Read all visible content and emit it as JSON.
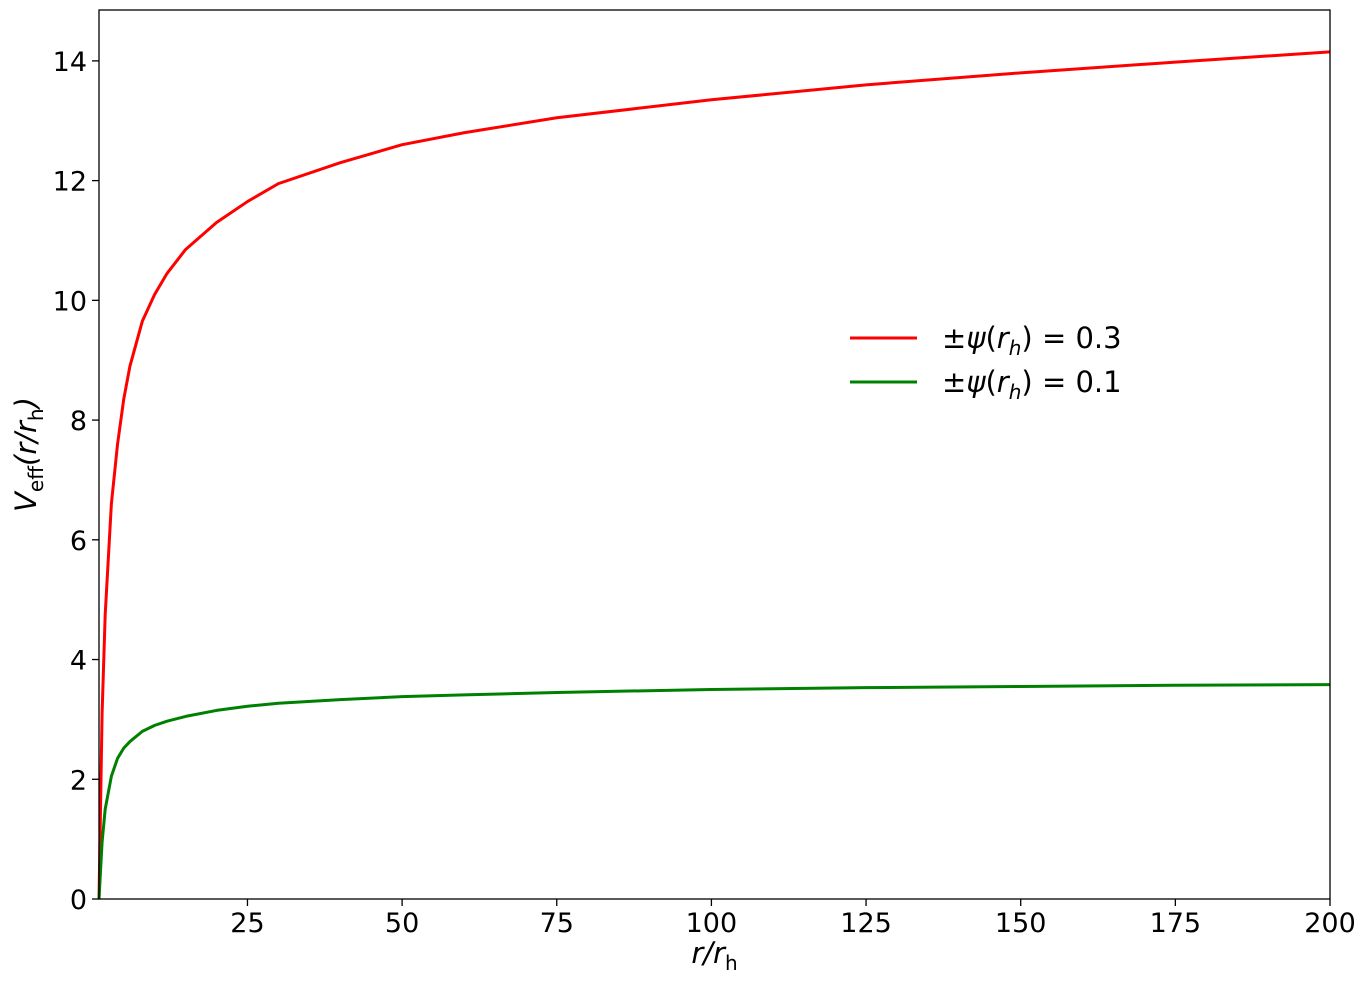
{
  "chart_data": {
    "type": "line",
    "xlabel": {
      "main": "r/r",
      "sub": "h"
    },
    "ylabel": {
      "main": "V",
      "sub1": "eff",
      "mid": "(r/r",
      "sub2": "h",
      "end": ")"
    },
    "xlim": [
      1,
      200
    ],
    "ylim": [
      0,
      14.85
    ],
    "xticks": [
      25,
      50,
      75,
      100,
      125,
      150,
      175,
      200
    ],
    "xtick_labels": [
      "25",
      "50",
      "75",
      "100",
      "125",
      "150",
      "175",
      "200"
    ],
    "yticks": [
      0,
      2,
      4,
      6,
      8,
      10,
      12,
      14
    ],
    "ytick_labels": [
      "0",
      "2",
      "4",
      "6",
      "8",
      "10",
      "12",
      "14"
    ],
    "grid": false,
    "legend_position": "center-right",
    "series": [
      {
        "name": "±ψ(r_h) = 0.3",
        "legend": {
          "prefix": "±",
          "psi": "ψ",
          "open": "(",
          "r": "r",
          "sub": "h",
          "close": ")",
          "eq": " = 0.3"
        },
        "color": "#ff0000",
        "x": [
          1,
          1.5,
          2,
          3,
          4,
          5,
          6,
          8,
          10,
          12,
          15,
          20,
          25,
          30,
          40,
          50,
          60,
          75,
          100,
          125,
          150,
          175,
          200
        ],
        "y": [
          0,
          3.1,
          4.75,
          6.6,
          7.6,
          8.35,
          8.9,
          9.65,
          10.1,
          10.45,
          10.85,
          11.3,
          11.65,
          11.95,
          12.3,
          12.6,
          12.8,
          13.05,
          13.35,
          13.6,
          13.8,
          13.98,
          14.15
        ]
      },
      {
        "name": "±ψ(r_h) = 0.1",
        "legend": {
          "prefix": "±",
          "psi": "ψ",
          "open": "(",
          "r": "r",
          "sub": "h",
          "close": ")",
          "eq": " = 0.1"
        },
        "color": "#008000",
        "x": [
          1,
          1.5,
          2,
          3,
          4,
          5,
          6,
          8,
          10,
          12,
          15,
          20,
          25,
          30,
          40,
          50,
          60,
          75,
          100,
          125,
          150,
          175,
          200
        ],
        "y": [
          0,
          0.95,
          1.5,
          2.05,
          2.35,
          2.52,
          2.63,
          2.8,
          2.9,
          2.97,
          3.05,
          3.15,
          3.22,
          3.27,
          3.33,
          3.38,
          3.41,
          3.45,
          3.5,
          3.53,
          3.55,
          3.57,
          3.58
        ]
      }
    ]
  }
}
